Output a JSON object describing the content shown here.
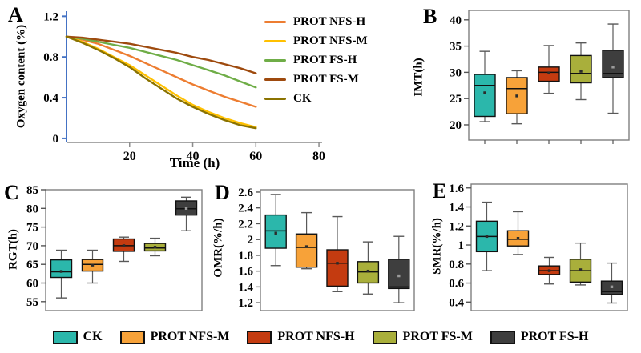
{
  "figure": {
    "panel_letters": {
      "A": "A",
      "B": "B",
      "C": "C",
      "D": "D",
      "E": "E"
    }
  },
  "legend": {
    "items": [
      {
        "label": "CK",
        "color": "#2bb7ab"
      },
      {
        "label": "PROT NFS-M",
        "color": "#f7a239"
      },
      {
        "label": "PROT NFS-H",
        "color": "#c43b10"
      },
      {
        "label": "PROT FS-M",
        "color": "#a9af3b"
      },
      {
        "label": "PROT FS-H",
        "color": "#3e3e3e"
      }
    ]
  },
  "chart_data": [
    {
      "id": "A",
      "type": "line",
      "xlabel": "Time (h)",
      "ylabel": "Oxygen content (%)",
      "xlim": [
        0,
        81
      ],
      "ylim": [
        -0.04,
        1.25
      ],
      "xticks": [
        20,
        40,
        60,
        80
      ],
      "yticks": [
        0,
        0.4,
        0.8,
        1.2
      ],
      "yaxis_color": "#4472c4",
      "xaxis_color": "#8c8c8c",
      "x": [
        0,
        5,
        10,
        15,
        20,
        25,
        30,
        35,
        40,
        45,
        50,
        55,
        60
      ],
      "series": [
        {
          "name": "PROT NFS-H",
          "color": "#ed7d31",
          "values": [
            1.0,
            0.97,
            0.93,
            0.87,
            0.81,
            0.74,
            0.67,
            0.6,
            0.53,
            0.47,
            0.41,
            0.36,
            0.31
          ]
        },
        {
          "name": "PROT NFS-M",
          "color": "#ffc000",
          "values": [
            1.0,
            0.95,
            0.88,
            0.8,
            0.72,
            0.62,
            0.52,
            0.42,
            0.33,
            0.26,
            0.2,
            0.15,
            0.11
          ]
        },
        {
          "name": "PROT FS-H",
          "color": "#6fad47",
          "values": [
            1.0,
            0.98,
            0.95,
            0.92,
            0.89,
            0.85,
            0.81,
            0.77,
            0.72,
            0.67,
            0.62,
            0.56,
            0.5
          ]
        },
        {
          "name": "PROT FS-M",
          "color": "#9e4a0e",
          "values": [
            1.0,
            0.99,
            0.97,
            0.95,
            0.93,
            0.9,
            0.87,
            0.84,
            0.8,
            0.77,
            0.73,
            0.69,
            0.64
          ]
        },
        {
          "name": "CK",
          "color": "#8b7300",
          "values": [
            1.0,
            0.94,
            0.87,
            0.79,
            0.7,
            0.59,
            0.49,
            0.39,
            0.31,
            0.24,
            0.18,
            0.13,
            0.1
          ]
        }
      ]
    },
    {
      "id": "B",
      "type": "box",
      "ylabel": "IMT(h)",
      "ylim": [
        17.1,
        41.8
      ],
      "yticks": [
        20,
        25,
        30,
        35,
        40
      ],
      "bottom_ticks": true,
      "groups": [
        {
          "name": "CK",
          "color": "#2bb7ab",
          "low": 20.6,
          "q1": 21.6,
          "median": 27.5,
          "q3": 29.6,
          "high": 34.0,
          "mean": 26.1
        },
        {
          "name": "PROT NFS-M",
          "color": "#f7a239",
          "low": 20.2,
          "q1": 22.1,
          "median": 26.9,
          "q3": 29.0,
          "high": 30.3,
          "mean": 25.5
        },
        {
          "name": "PROT NFS-H",
          "color": "#c43b10",
          "low": 26.0,
          "q1": 28.3,
          "median": 30.0,
          "q3": 31.0,
          "high": 35.1,
          "mean": 29.9
        },
        {
          "name": "PROT FS-M",
          "color": "#a9af3b",
          "low": 24.8,
          "q1": 28.0,
          "median": 29.8,
          "q3": 33.2,
          "high": 35.6,
          "mean": 30.2
        },
        {
          "name": "PROT FS-H",
          "color": "#3e3e3e",
          "low": 22.2,
          "q1": 29.0,
          "median": 29.8,
          "q3": 34.2,
          "high": 39.2,
          "mean": 31.0
        }
      ]
    },
    {
      "id": "C",
      "type": "box",
      "ylabel": "RGT(h)",
      "ylim": [
        52.6,
        85
      ],
      "yticks": [
        55,
        60,
        65,
        70,
        75,
        80,
        85
      ],
      "bottom_ticks": false,
      "groups": [
        {
          "name": "CK",
          "color": "#2bb7ab",
          "low": 56.0,
          "q1": 61.5,
          "median": 63.0,
          "q3": 66.2,
          "high": 68.8,
          "mean": 63.1
        },
        {
          "name": "PROT NFS-M",
          "color": "#f7a239",
          "low": 60.0,
          "q1": 63.2,
          "median": 65.0,
          "q3": 66.3,
          "high": 68.8,
          "mean": 64.8
        },
        {
          "name": "PROT NFS-H",
          "color": "#c43b10",
          "low": 65.8,
          "q1": 68.5,
          "median": 70.0,
          "q3": 71.8,
          "high": 72.3,
          "mean": 70.0
        },
        {
          "name": "PROT FS-M",
          "color": "#a9af3b",
          "low": 67.3,
          "q1": 68.6,
          "median": 69.4,
          "q3": 70.6,
          "high": 72.0,
          "mean": 69.6
        },
        {
          "name": "PROT FS-H",
          "color": "#3e3e3e",
          "low": 74.0,
          "q1": 78.2,
          "median": 79.9,
          "q3": 82.0,
          "high": 83.0,
          "mean": 80.0
        }
      ]
    },
    {
      "id": "D",
      "type": "box",
      "ylabel": "OMR(%/h)",
      "ylim": [
        1.1,
        2.63
      ],
      "yticks": [
        1.2,
        1.4,
        1.6,
        1.8,
        2,
        2.2,
        2.4,
        2.6
      ],
      "bottom_ticks": false,
      "groups": [
        {
          "name": "CK",
          "color": "#2bb7ab",
          "low": 1.67,
          "q1": 1.89,
          "median": 2.11,
          "q3": 2.31,
          "high": 2.57,
          "mean": 2.08
        },
        {
          "name": "PROT NFS-M",
          "color": "#f7a239",
          "low": 1.63,
          "q1": 1.65,
          "median": 1.9,
          "q3": 2.07,
          "high": 2.34,
          "mean": 1.91
        },
        {
          "name": "PROT NFS-H",
          "color": "#c43b10",
          "low": 1.34,
          "q1": 1.41,
          "median": 1.7,
          "q3": 1.87,
          "high": 2.29,
          "mean": 1.7
        },
        {
          "name": "PROT FS-M",
          "color": "#a9af3b",
          "low": 1.31,
          "q1": 1.45,
          "median": 1.59,
          "q3": 1.72,
          "high": 1.97,
          "mean": 1.6
        },
        {
          "name": "PROT FS-H",
          "color": "#3e3e3e",
          "low": 1.2,
          "q1": 1.38,
          "median": 1.4,
          "q3": 1.75,
          "high": 2.04,
          "mean": 1.54
        }
      ]
    },
    {
      "id": "E",
      "type": "box",
      "ylabel": "SMR(%/h)",
      "ylim": [
        0.31,
        1.64
      ],
      "yticks": [
        0.4,
        0.6,
        0.8,
        1,
        1.2,
        1.4,
        1.6
      ],
      "bottom_ticks": false,
      "groups": [
        {
          "name": "CK",
          "color": "#2bb7ab",
          "low": 0.73,
          "q1": 0.93,
          "median": 1.09,
          "q3": 1.25,
          "high": 1.45,
          "mean": 1.09
        },
        {
          "name": "PROT NFS-M",
          "color": "#f7a239",
          "low": 0.9,
          "q1": 0.99,
          "median": 1.06,
          "q3": 1.15,
          "high": 1.35,
          "mean": 1.07
        },
        {
          "name": "PROT NFS-H",
          "color": "#c43b10",
          "low": 0.59,
          "q1": 0.69,
          "median": 0.73,
          "q3": 0.78,
          "high": 0.87,
          "mean": 0.73
        },
        {
          "name": "PROT FS-M",
          "color": "#a9af3b",
          "low": 0.58,
          "q1": 0.61,
          "median": 0.73,
          "q3": 0.85,
          "high": 1.02,
          "mean": 0.74
        },
        {
          "name": "PROT FS-H",
          "color": "#3e3e3e",
          "low": 0.39,
          "q1": 0.48,
          "median": 0.51,
          "q3": 0.62,
          "high": 0.81,
          "mean": 0.56
        }
      ]
    }
  ]
}
